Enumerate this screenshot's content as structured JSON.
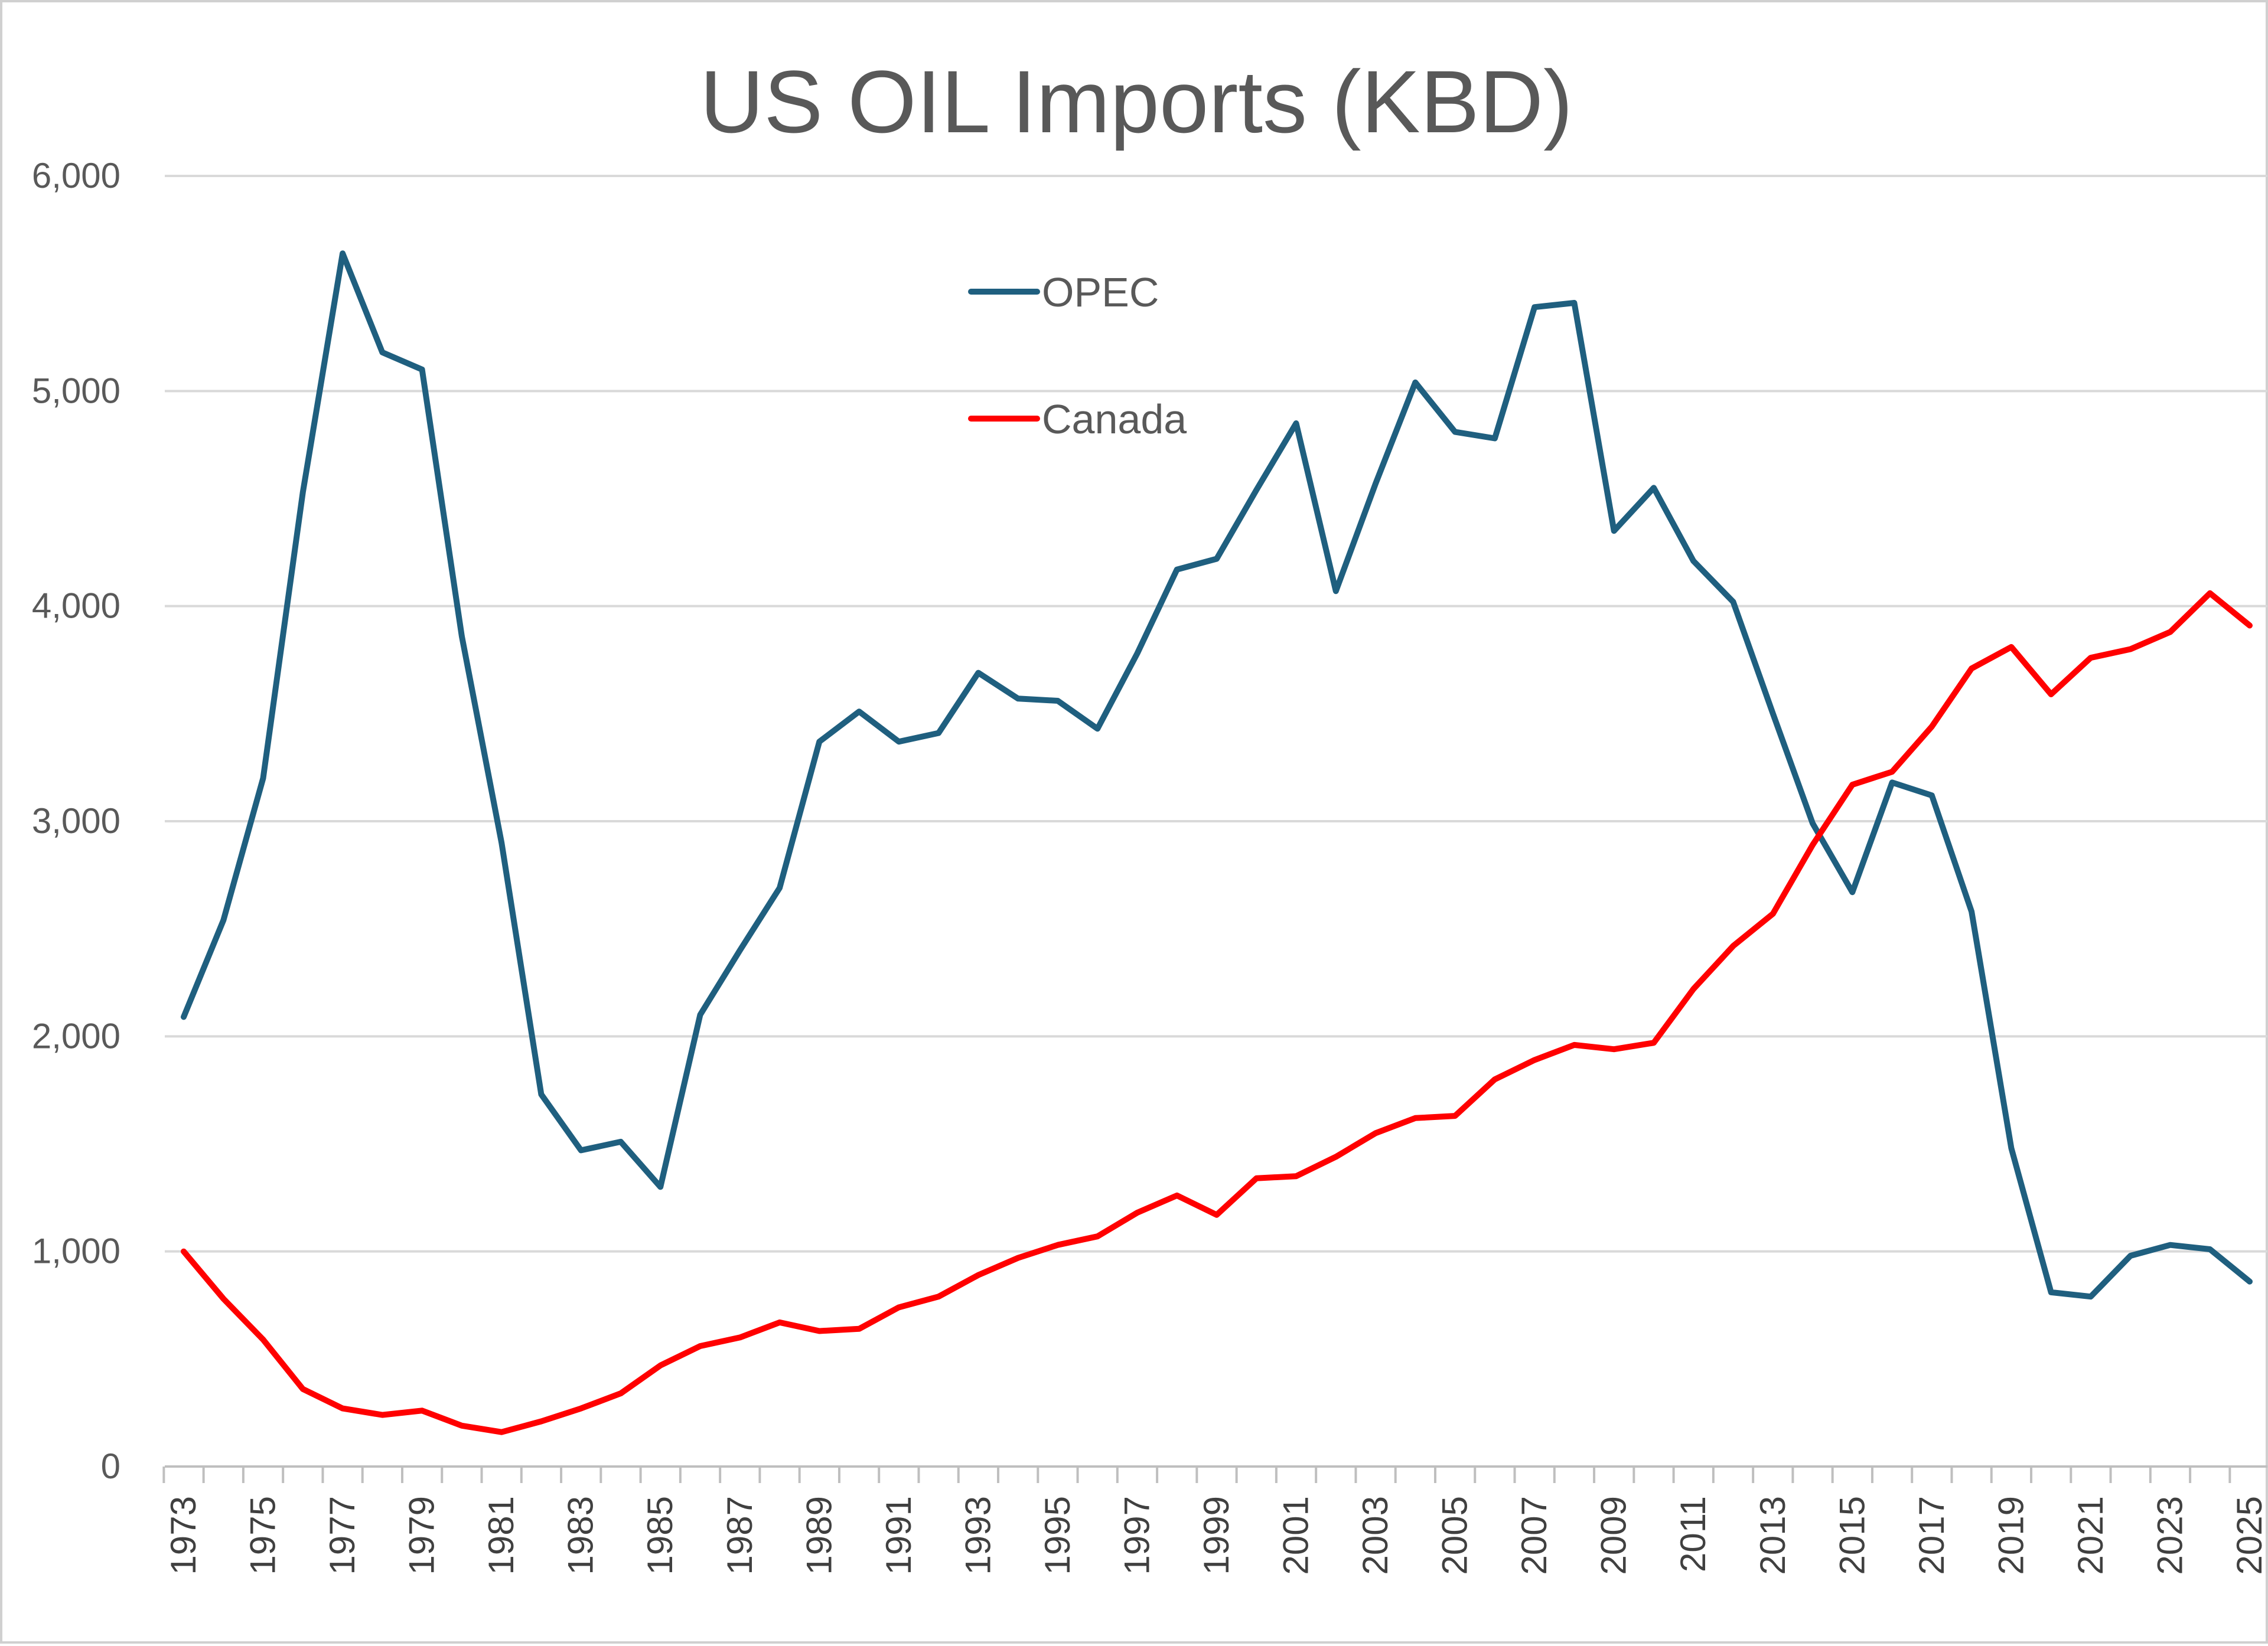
{
  "chart_data": {
    "type": "line",
    "title": "US OIL Imports (KBD)",
    "xlabel": "",
    "ylabel": "",
    "ylim": [
      0,
      6000
    ],
    "yticks": [
      0,
      1000,
      2000,
      3000,
      4000,
      5000,
      6000
    ],
    "ytick_labels": [
      "0",
      "1,000",
      "2,000",
      "3,000",
      "4,000",
      "5,000",
      "6,000"
    ],
    "x": [
      1973,
      1974,
      1975,
      1976,
      1977,
      1978,
      1979,
      1980,
      1981,
      1982,
      1983,
      1984,
      1985,
      1986,
      1987,
      1988,
      1989,
      1990,
      1991,
      1992,
      1993,
      1994,
      1995,
      1996,
      1997,
      1998,
      1999,
      2000,
      2001,
      2002,
      2003,
      2004,
      2005,
      2006,
      2007,
      2008,
      2009,
      2010,
      2011,
      2012,
      2013,
      2014,
      2015,
      2016,
      2017,
      2018,
      2019,
      2020,
      2021,
      2022,
      2023,
      2024,
      2025
    ],
    "xtick_labels": [
      "1973",
      "1975",
      "1977",
      "1979",
      "1981",
      "1983",
      "1985",
      "1987",
      "1989",
      "1991",
      "1993",
      "1995",
      "1997",
      "1999",
      "2001",
      "2003",
      "2005",
      "2007",
      "2009",
      "2011",
      "2013",
      "2015",
      "2017",
      "2019",
      "2021",
      "2023",
      "2025"
    ],
    "legend_position": "top-center",
    "series": [
      {
        "name": "OPEC",
        "color": "#1f5f7f",
        "values": [
          2090,
          2540,
          3200,
          4530,
          5640,
          5180,
          5100,
          3860,
          2900,
          1730,
          1470,
          1510,
          1300,
          2100,
          2400,
          2690,
          3370,
          3510,
          3370,
          3410,
          3690,
          3570,
          3560,
          3430,
          3780,
          4170,
          4220,
          4540,
          4850,
          4070,
          4570,
          5040,
          4810,
          4780,
          5390,
          5410,
          4350,
          4550,
          4210,
          4020,
          3500,
          2990,
          2670,
          3180,
          3120,
          2580,
          1480,
          810,
          790,
          980,
          1030,
          1010,
          860
        ]
      },
      {
        "name": "Canada",
        "color": "#ff0000",
        "values": [
          1000,
          780,
          590,
          360,
          270,
          240,
          260,
          190,
          160,
          210,
          270,
          340,
          470,
          560,
          600,
          670,
          630,
          640,
          740,
          790,
          890,
          970,
          1030,
          1070,
          1180,
          1260,
          1170,
          1340,
          1350,
          1440,
          1550,
          1620,
          1630,
          1800,
          1890,
          1960,
          1940,
          1970,
          2220,
          2420,
          2570,
          2890,
          3170,
          3230,
          3440,
          3710,
          3810,
          3590,
          3760,
          3800,
          3880,
          4060,
          3910
        ]
      }
    ]
  }
}
